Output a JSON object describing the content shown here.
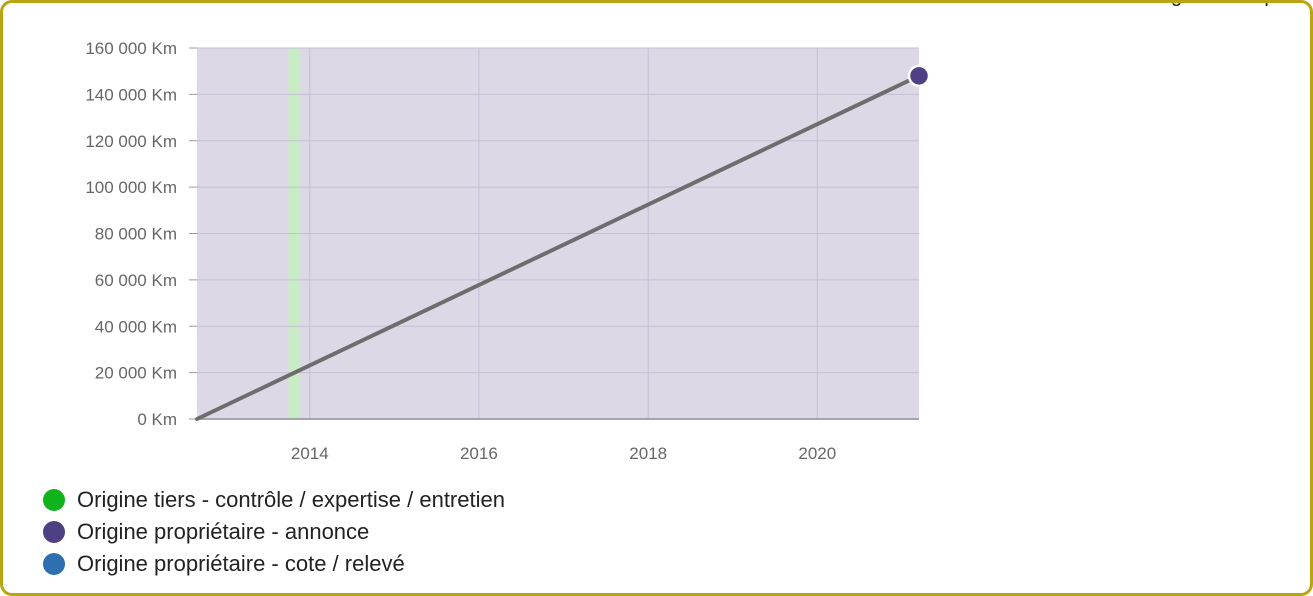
{
  "header": {
    "caption": "Évolution du kilométrage du compteur"
  },
  "chart_data": {
    "type": "line",
    "x_axis": {
      "type": "date",
      "min": "2012-09-01",
      "max": "2021-03-15",
      "ticks": [
        "2014-01-01",
        "2016-01-01",
        "2018-01-01",
        "2020-01-01"
      ],
      "tick_labels": [
        "2014",
        "2016",
        "2018",
        "2020"
      ]
    },
    "y_axis": {
      "min": 0,
      "max": 160000,
      "step": 20000,
      "tick_labels": [
        "160 000 Km",
        "140 000 Km",
        "120 000 Km",
        "100 000 Km",
        "80 000 Km",
        "60 000 Km",
        "40 000 Km",
        "20 000 Km",
        "0 Km"
      ]
    },
    "grid": true,
    "series": [
      {
        "color": "#6d6d6d",
        "points": [
          {
            "x": "2012-09-01",
            "y": 0
          },
          {
            "x": "2021-03-15",
            "y": 148000
          }
        ]
      }
    ],
    "markers": [
      {
        "x": "2021-03-15",
        "y": 148000,
        "color": "#4f3f83",
        "source": "Origine propriétaire - annonce"
      }
    ],
    "bands": [
      {
        "from": "2013-10-01",
        "to": "2013-11-20",
        "color": "#c8ecc3"
      }
    ],
    "plot_background": "#dcd8e6",
    "legend": {
      "position": "bottom-left",
      "items": [
        {
          "label": "Origine tiers - contrôle / expertise / entretien",
          "color": "#11b31c"
        },
        {
          "label": "Origine propriétaire - annonce",
          "color": "#4f3f83"
        },
        {
          "label": "Origine propriétaire - cote / relevé",
          "color": "#2e6fb0"
        }
      ]
    }
  }
}
